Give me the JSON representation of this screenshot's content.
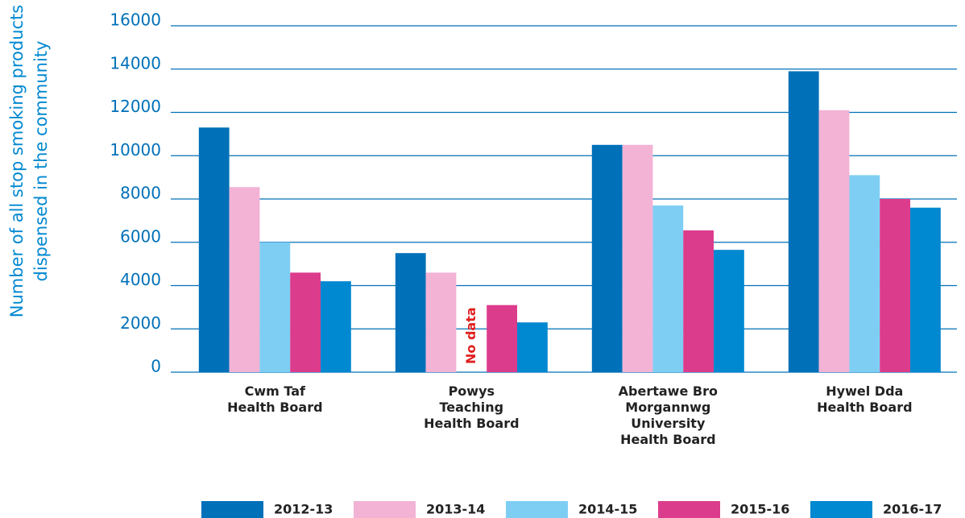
{
  "chart_data": {
    "type": "bar",
    "y_label": [
      "Number of all stop smoking products",
      "dispensed in the community"
    ],
    "categories": [
      "Cwm Taf Health Board",
      "Powys Teaching Health Board",
      "Abertawe Bro Morgannwg University Health Board",
      "Hywel Dda Health Board"
    ],
    "series": [
      {
        "name": "2012-13",
        "color": "#0070b8",
        "values": [
          11300,
          5500,
          10500,
          13900
        ]
      },
      {
        "name": "2013-14",
        "color": "#f2b3d5",
        "values": [
          8550,
          4600,
          10500,
          12100
        ]
      },
      {
        "name": "2014-15",
        "color": "#7ecef4",
        "values": [
          6000,
          null,
          7700,
          9100
        ]
      },
      {
        "name": "2015-16",
        "color": "#dc3c8c",
        "values": [
          4600,
          3100,
          6550,
          8000
        ]
      },
      {
        "name": "2016-17",
        "color": "#0088d1",
        "values": [
          4200,
          2300,
          5650,
          7600
        ]
      }
    ],
    "annotation": "No data",
    "ylim": [
      0,
      16000
    ],
    "yticks": [
      0,
      2000,
      4000,
      6000,
      8000,
      10000,
      12000,
      14000,
      16000
    ],
    "grid": true
  }
}
